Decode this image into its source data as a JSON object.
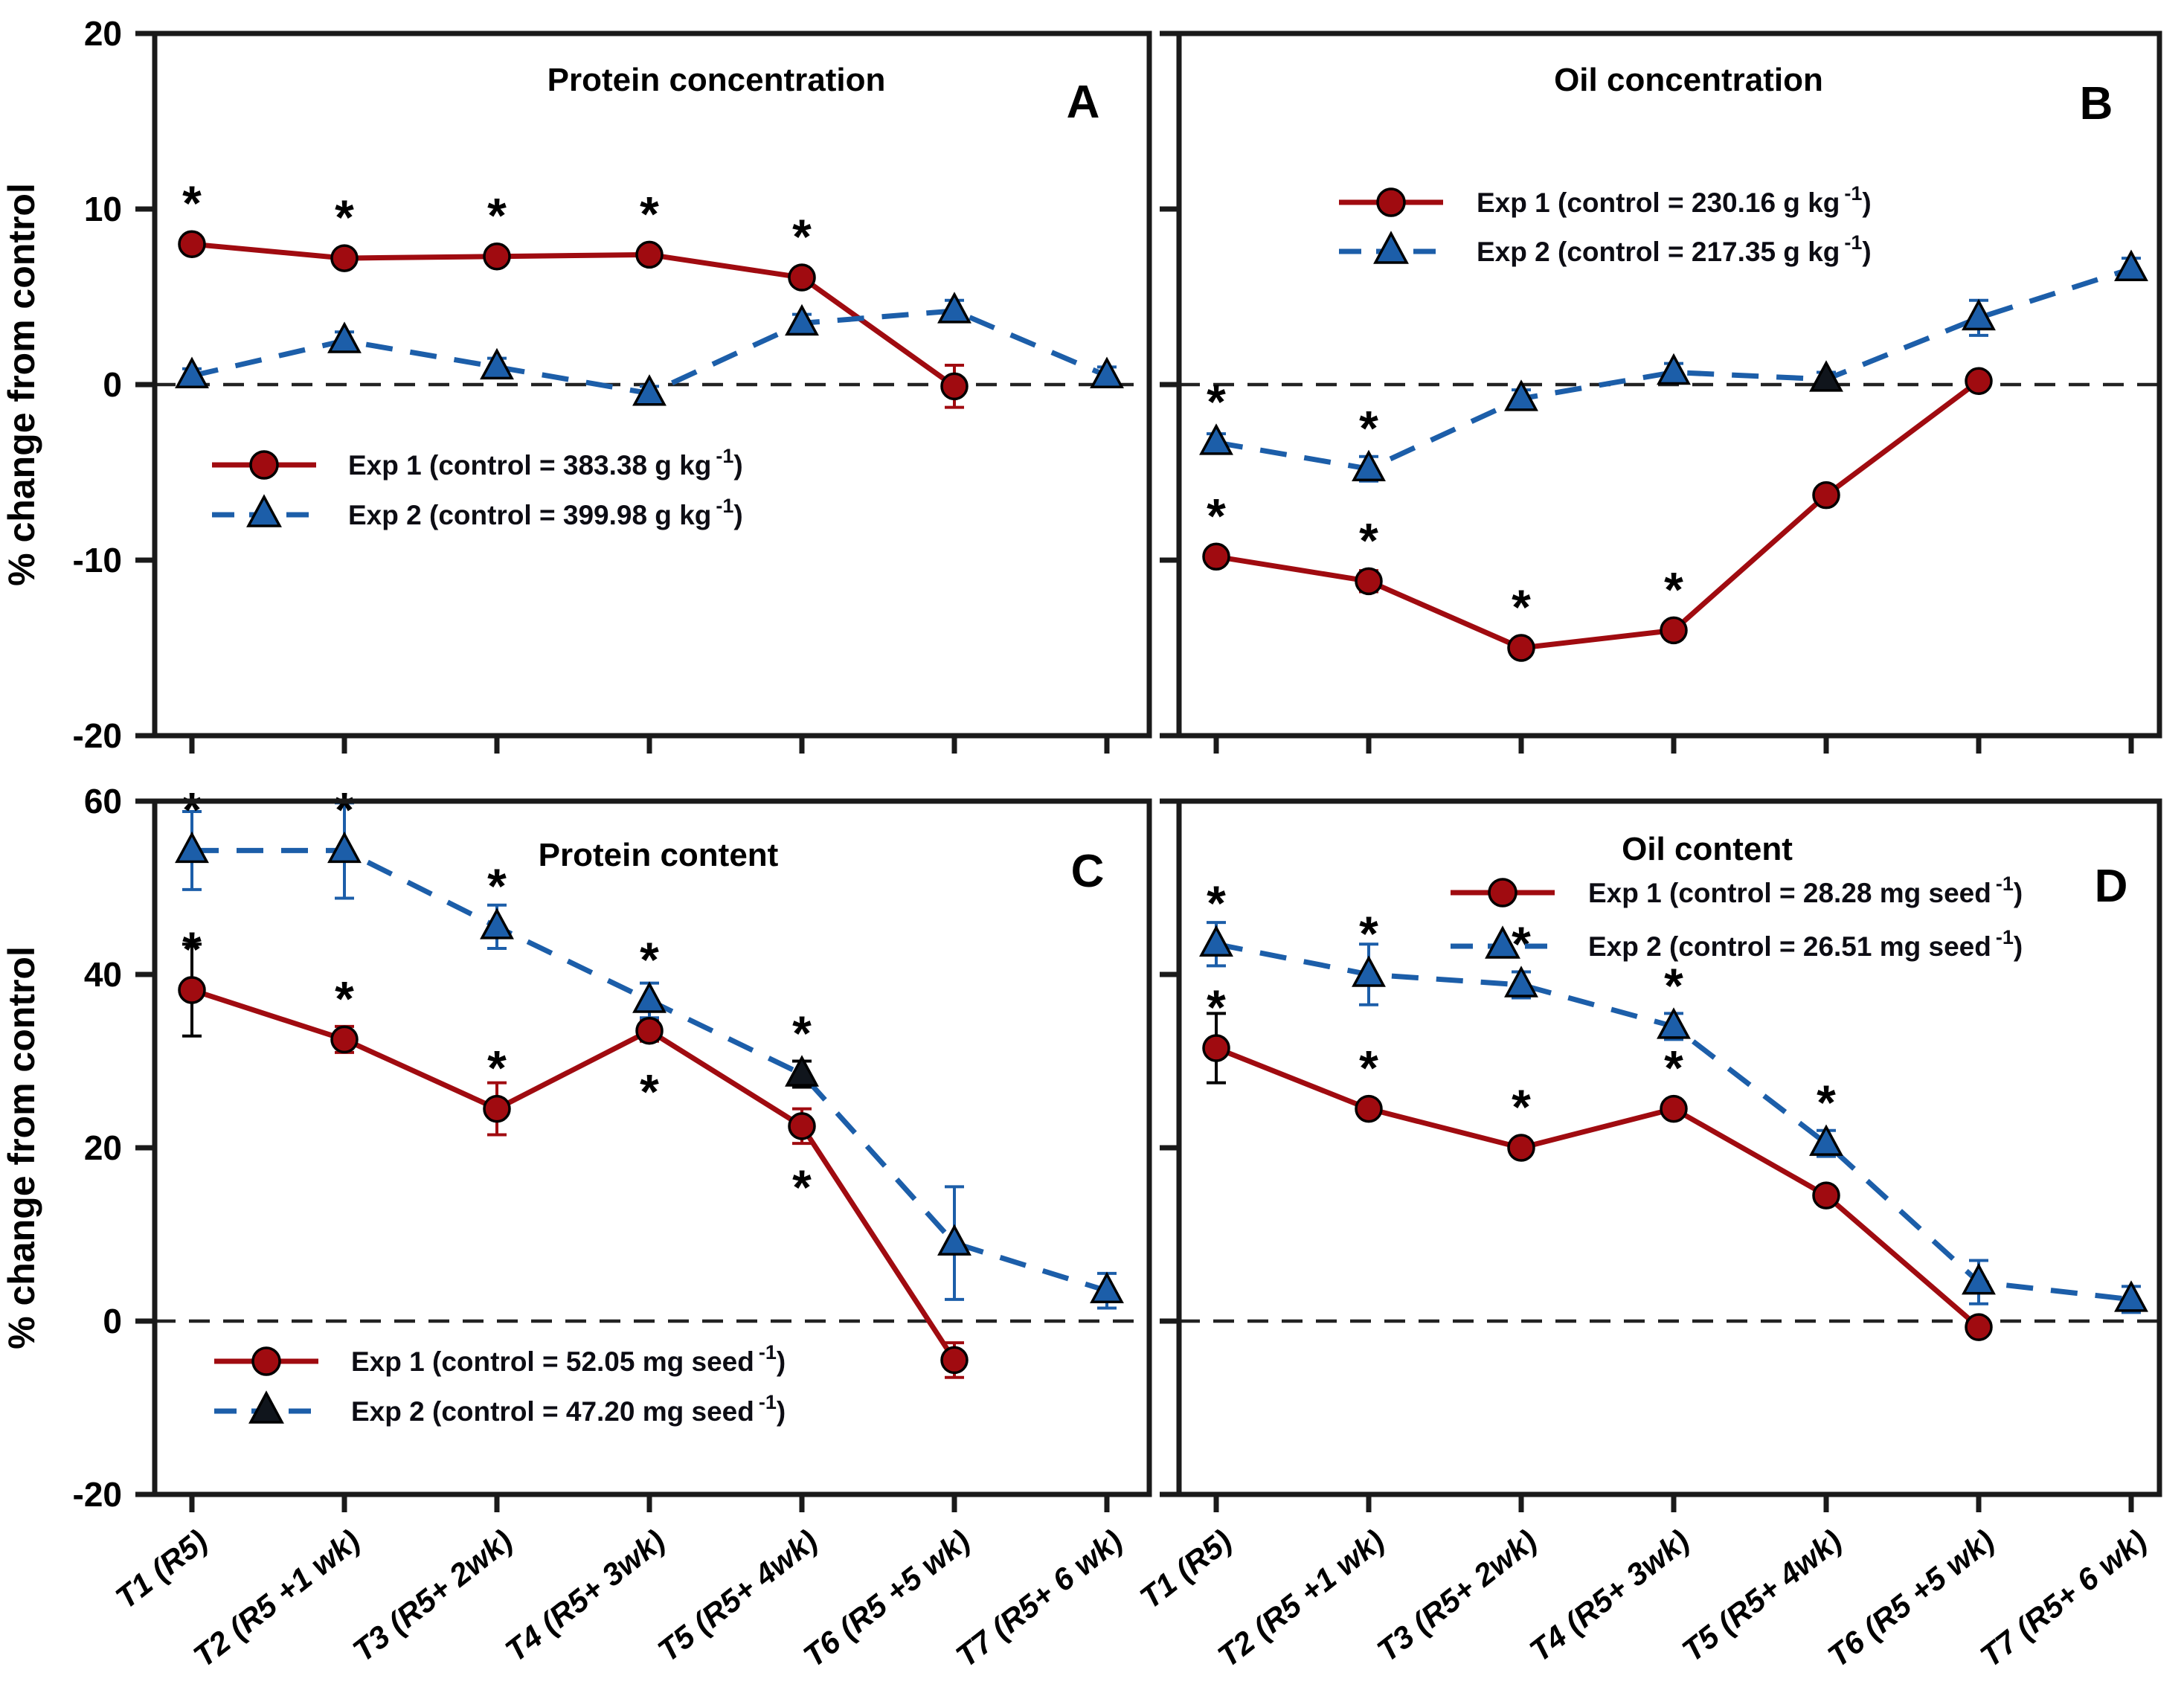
{
  "figure": {
    "y_axis_label": "% change from control",
    "x_tick_labels": [
      "T1 (R5)",
      "T2 (R5 +1 wk)",
      "T3 (R5+ 2wk)",
      "T4 (R5+ 3wk)",
      "T5 (R5+ 4wk)",
      "T6 (R5 +5 wk)",
      "T7 (R5+ 6 wk)"
    ],
    "colors": {
      "exp1": "#a00b10",
      "exp2": "#1c5ea9",
      "dark_marker": "#10151c",
      "axis": "#1a1a1a",
      "zero_line": "#222222",
      "text": "#000000",
      "background": "#ffffff"
    }
  },
  "chart_data": [
    {
      "type": "line",
      "panel": "A",
      "panel_letter": "A",
      "title": "Protein concentration",
      "ylabel": "% change from control",
      "ylim": [
        -20,
        20
      ],
      "yticks": [
        20,
        10,
        0,
        -10,
        -20
      ],
      "zero_line": true,
      "legend_items": [
        {
          "series": "exp1",
          "text": "Exp 1 (control = 383.38 g kg",
          "sup": "-1",
          "suffix": ")"
        },
        {
          "series": "exp2",
          "text": "Exp 2 (control = 399.98 g kg",
          "sup": "-1",
          "suffix": ")"
        }
      ],
      "series": [
        {
          "name": "Exp 1",
          "key": "exp1",
          "marker": "circle",
          "line_style": "solid",
          "values": [
            8.0,
            7.2,
            7.3,
            7.4,
            6.1,
            -0.1,
            null
          ],
          "errors": [
            0.5,
            0.4,
            0.4,
            0.4,
            0.5,
            1.2,
            null
          ],
          "stars": [
            "above",
            "above",
            "above",
            "above",
            "above",
            null,
            null
          ]
        },
        {
          "name": "Exp 2",
          "key": "exp2",
          "marker": "triangle",
          "line_style": "dashed",
          "values": [
            0.5,
            2.5,
            1.0,
            -0.5,
            3.5,
            4.2,
            0.5
          ],
          "errors": [
            0.4,
            0.5,
            0.5,
            0.4,
            0.5,
            0.6,
            0.5
          ],
          "stars": [
            null,
            null,
            null,
            null,
            null,
            null,
            null
          ]
        }
      ]
    },
    {
      "type": "line",
      "panel": "B",
      "panel_letter": "B",
      "title": "Oil concentration",
      "ylabel": "% change from control",
      "ylim": [
        -20,
        20
      ],
      "yticks": [
        20,
        10,
        0,
        -10,
        -20
      ],
      "zero_line": true,
      "legend_items": [
        {
          "series": "exp1",
          "text": "Exp 1 (control = 230.16 g kg",
          "sup": "-1",
          "suffix": ")"
        },
        {
          "series": "exp2",
          "text": "Exp 2 (control = 217.35 g kg",
          "sup": "-1",
          "suffix": ")"
        }
      ],
      "series": [
        {
          "name": "Exp 1",
          "key": "exp1",
          "marker": "circle",
          "line_style": "solid",
          "values": [
            -9.8,
            -11.2,
            -15.0,
            -14.0,
            -6.3,
            0.2,
            null
          ],
          "errors": [
            0.5,
            0.6,
            0.5,
            0.5,
            0.4,
            0.4,
            null
          ],
          "stars": [
            "above",
            "above",
            "above",
            "above",
            null,
            null,
            null
          ]
        },
        {
          "name": "Exp 2",
          "key": "exp2",
          "marker": "triangle",
          "line_style": "dashed",
          "values": [
            -3.3,
            -4.8,
            -0.8,
            0.7,
            0.3,
            3.8,
            6.6
          ],
          "errors": [
            0.5,
            0.7,
            0.5,
            0.5,
            0.4,
            1.0,
            0.6
          ],
          "stars": [
            "above",
            "above",
            null,
            null,
            null,
            null,
            null
          ],
          "point_fills": [
            null,
            null,
            null,
            null,
            "dark_marker",
            null,
            null
          ]
        }
      ]
    },
    {
      "type": "line",
      "panel": "C",
      "panel_letter": "C",
      "title": "Protein content",
      "ylabel": "% change from control",
      "ylim": [
        -20,
        60
      ],
      "yticks": [
        60,
        40,
        20,
        0,
        -20
      ],
      "zero_line": true,
      "legend_items": [
        {
          "series": "exp1",
          "text": "Exp 1 (control = 52.05 mg seed",
          "sup": "-1",
          "suffix": ")"
        },
        {
          "series": "exp2",
          "text": "Exp 2 (control = 47.20 mg seed",
          "sup": "-1",
          "suffix": ")",
          "marker_fill": "dark_marker"
        }
      ],
      "series": [
        {
          "name": "Exp 1",
          "key": "exp1",
          "marker": "circle",
          "line_style": "solid",
          "values": [
            38.2,
            32.5,
            24.5,
            33.5,
            22.5,
            -4.5,
            null
          ],
          "errors": [
            5.3,
            1.5,
            3.0,
            1.2,
            2.0,
            2.0,
            null
          ],
          "stars": [
            "above",
            "above",
            "above",
            "below",
            "below",
            null,
            null
          ],
          "error_colors": [
            "black",
            null,
            null,
            null,
            null,
            null,
            null
          ]
        },
        {
          "name": "Exp 2",
          "key": "exp2",
          "marker": "triangle",
          "line_style": "dashed",
          "values": [
            54.3,
            54.3,
            45.5,
            37.0,
            28.5,
            9.0,
            3.5
          ],
          "errors": [
            4.5,
            5.5,
            2.5,
            2.0,
            1.5,
            6.5,
            2.0
          ],
          "stars": [
            "above",
            "above",
            "above",
            "above",
            "above",
            null,
            null
          ],
          "point_fills": [
            null,
            null,
            null,
            null,
            "dark_marker",
            null,
            null
          ],
          "error_colors": [
            null,
            null,
            null,
            null,
            "black",
            null,
            null
          ]
        }
      ]
    },
    {
      "type": "line",
      "panel": "D",
      "panel_letter": "D",
      "title": "Oil content",
      "ylabel": "% change from control",
      "ylim": [
        -20,
        60
      ],
      "yticks": [
        60,
        40,
        20,
        0,
        -20
      ],
      "zero_line": true,
      "legend_items": [
        {
          "series": "exp1",
          "text": "Exp 1 (control = 28.28 mg seed",
          "sup": "-1",
          "suffix": ")"
        },
        {
          "series": "exp2",
          "text": "Exp 2 (control = 26.51 mg seed",
          "sup": "-1",
          "suffix": ")"
        }
      ],
      "series": [
        {
          "name": "Exp 1",
          "key": "exp1",
          "marker": "circle",
          "line_style": "solid",
          "values": [
            31.5,
            24.5,
            20.0,
            24.5,
            14.5,
            -0.7,
            null
          ],
          "errors": [
            4.0,
            1.0,
            0.8,
            0.8,
            1.0,
            0.8,
            null
          ],
          "stars": [
            "above",
            "above",
            "above",
            "above",
            "above",
            null,
            null
          ],
          "error_colors": [
            "black",
            null,
            null,
            null,
            null,
            null,
            null
          ]
        },
        {
          "name": "Exp 2",
          "key": "exp2",
          "marker": "triangle",
          "line_style": "dashed",
          "values": [
            43.5,
            40.0,
            38.8,
            34.0,
            20.5,
            4.5,
            2.5
          ],
          "errors": [
            2.5,
            3.5,
            1.5,
            1.5,
            1.5,
            2.5,
            1.5
          ],
          "stars": [
            "above",
            "above",
            "above",
            "above",
            "above",
            null,
            null
          ]
        }
      ]
    }
  ]
}
